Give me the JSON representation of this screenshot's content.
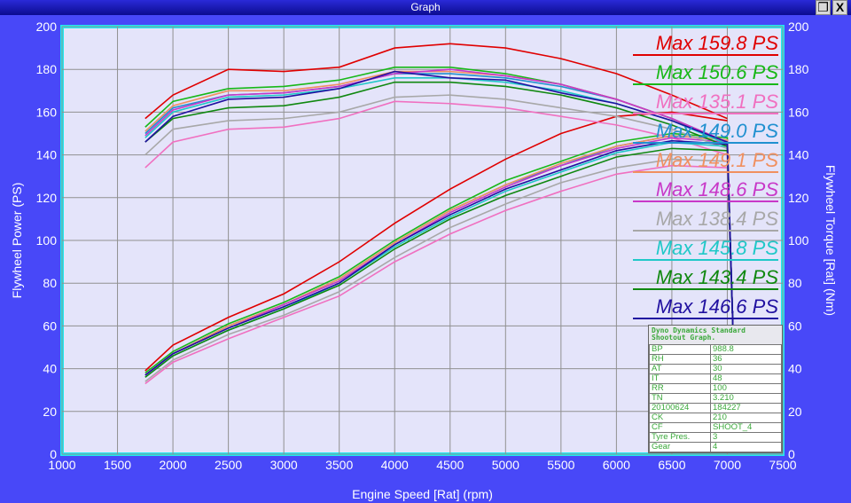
{
  "window": {
    "title": "Graph",
    "restore_icon": "restore-icon",
    "close_label": "X"
  },
  "chart_data": {
    "type": "line",
    "xlabel": "Engine Speed [Rat] (rpm)",
    "ylabel": "Flywheel Power (PS)",
    "y2label": "Flywheel Torque [Rat] (Nm)",
    "xlim": [
      1000,
      7500
    ],
    "ylim": [
      0,
      200
    ],
    "y2lim": [
      0,
      200
    ],
    "xticks": [
      1000,
      1500,
      2000,
      2500,
      3000,
      3500,
      4000,
      4500,
      5000,
      5500,
      6000,
      6500,
      7000,
      7500
    ],
    "yticks": [
      0,
      20,
      40,
      60,
      80,
      100,
      120,
      140,
      160,
      180,
      200
    ],
    "grid": true,
    "legend_position": "right",
    "rpm": [
      1750,
      2000,
      2500,
      3000,
      3500,
      4000,
      4500,
      5000,
      5500,
      6000,
      6500,
      7000,
      7050
    ],
    "series": [
      {
        "name": "Max 159.8 PS",
        "color": "#e00000",
        "power": [
          39,
          51,
          64,
          75,
          90,
          108,
          124,
          138,
          150,
          158,
          160,
          156,
          null
        ],
        "torque": [
          157,
          168,
          180,
          179,
          181,
          190,
          192,
          190,
          185,
          178,
          168,
          157,
          null
        ]
      },
      {
        "name": "Max 150.6 PS",
        "color": "#18b818",
        "power": [
          38,
          48,
          61,
          71,
          83,
          100,
          115,
          128,
          137,
          146,
          150,
          148,
          60
        ],
        "torque": [
          153,
          165,
          171,
          172,
          175,
          181,
          181,
          178,
          173,
          166,
          157,
          145,
          60
        ]
      },
      {
        "name": "Max 135.1 PS",
        "color": "#f070c0",
        "power": [
          33,
          43,
          54,
          64,
          74,
          90,
          103,
          114,
          123,
          131,
          135,
          134,
          60
        ],
        "torque": [
          134,
          146,
          152,
          153,
          157,
          165,
          164,
          162,
          158,
          154,
          148,
          140,
          60
        ]
      },
      {
        "name": "Max 149.0 PS",
        "color": "#2090d0",
        "power": [
          37,
          47,
          60,
          70,
          82,
          99,
          114,
          126,
          135,
          144,
          149,
          147,
          60
        ],
        "torque": [
          150,
          162,
          168,
          169,
          172,
          178,
          178,
          176,
          172,
          166,
          157,
          146,
          60
        ]
      },
      {
        "name": "Max 149.1 PS",
        "color": "#f09060",
        "power": [
          37,
          47,
          60,
          70,
          82,
          99,
          114,
          126,
          136,
          144,
          149,
          147,
          60
        ],
        "torque": [
          151,
          163,
          170,
          170,
          173,
          179,
          179,
          177,
          173,
          166,
          157,
          146,
          60
        ]
      },
      {
        "name": "Max 148.6 PS",
        "color": "#c838c8",
        "power": [
          37,
          47,
          59,
          70,
          81,
          98,
          113,
          125,
          135,
          143,
          148,
          146,
          60
        ],
        "torque": [
          149,
          161,
          168,
          169,
          172,
          178,
          180,
          177,
          173,
          166,
          157,
          146,
          60
        ]
      },
      {
        "name": "Max 138.4 PS",
        "color": "#a8a8a8",
        "power": [
          34,
          44,
          56,
          65,
          76,
          92,
          106,
          117,
          127,
          134,
          138,
          137,
          60
        ],
        "torque": [
          140,
          152,
          156,
          157,
          160,
          167,
          168,
          166,
          162,
          158,
          152,
          143,
          60
        ]
      },
      {
        "name": "Max 145.8 PS",
        "color": "#20c8c8",
        "power": [
          36,
          46,
          58,
          68,
          80,
          97,
          111,
          123,
          132,
          141,
          145.8,
          144,
          60
        ],
        "torque": [
          148,
          160,
          167,
          168,
          171,
          176,
          176,
          174,
          170,
          164,
          156,
          145,
          60
        ]
      },
      {
        "name": "Max 143.4 PS",
        "color": "#108810",
        "power": [
          36,
          46,
          58,
          68,
          79,
          96,
          110,
          121,
          130,
          139,
          143,
          142,
          60
        ],
        "torque": [
          146,
          157,
          162,
          163,
          167,
          174,
          174,
          172,
          168,
          162,
          154,
          144,
          60
        ]
      },
      {
        "name": "Max 146.6 PS",
        "color": "#2010a0",
        "power": [
          37,
          47,
          59,
          69,
          80,
          98,
          112,
          124,
          133,
          142,
          146.6,
          145,
          60
        ],
        "torque": [
          146,
          158,
          166,
          167,
          171,
          179,
          176,
          175,
          169,
          164,
          156,
          146,
          60
        ]
      }
    ]
  },
  "info_table": {
    "header": "Dyno Dynamics Standard Shootout Graph.",
    "rows": [
      [
        "BP",
        "988.8"
      ],
      [
        "RH",
        "36"
      ],
      [
        "AT",
        "30"
      ],
      [
        "IT",
        "48"
      ],
      [
        "RR",
        "100"
      ],
      [
        "TN",
        "3.210"
      ],
      [
        "20100624",
        "184227"
      ],
      [
        "CK",
        "210"
      ],
      [
        "CF",
        "SHOOT_4"
      ],
      [
        "Tyre Pres.",
        "3"
      ],
      [
        "Gear",
        "4"
      ]
    ]
  }
}
